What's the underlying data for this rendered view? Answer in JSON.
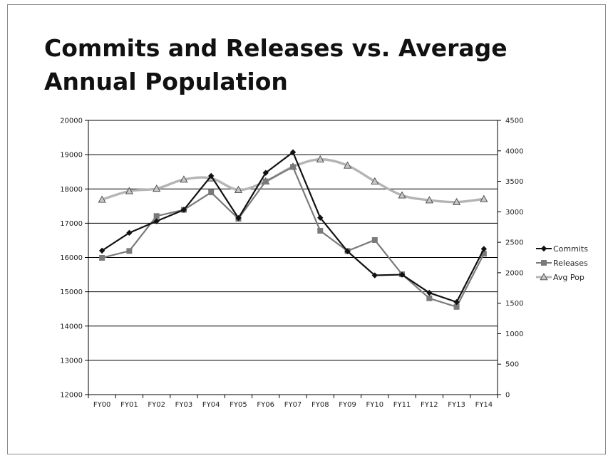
{
  "chart_data": {
    "type": "line",
    "title": "Commits and Releases vs. Average Annual Population",
    "categories": [
      "FY00",
      "FY01",
      "FY02",
      "FY03",
      "FY04",
      "FY05",
      "FY06",
      "FY07",
      "FY08",
      "FY09",
      "FY10",
      "FY11",
      "FY12",
      "FY13",
      "FY14"
    ],
    "y_left": {
      "min": 12000,
      "max": 20000,
      "step": 1000,
      "ticks": [
        "12000",
        "13000",
        "14000",
        "15000",
        "16000",
        "17000",
        "18000",
        "19000",
        "20000"
      ]
    },
    "y_right": {
      "min": 0,
      "max": 4500,
      "step": 500,
      "ticks": [
        "0",
        "500",
        "1000",
        "1500",
        "2000",
        "2500",
        "3000",
        "3500",
        "4000",
        "4500"
      ]
    },
    "grid": true,
    "legend": "right",
    "series": [
      {
        "name": "Commits",
        "axis": "left",
        "color": "#111111",
        "marker": "diamond",
        "values": [
          16200,
          16720,
          17060,
          17390,
          18380,
          17150,
          18470,
          19070,
          17160,
          16180,
          15480,
          15500,
          14970,
          14700,
          16250
        ]
      },
      {
        "name": "Releases",
        "axis": "left",
        "color": "#7a7a7a",
        "marker": "square",
        "values": [
          15990,
          16190,
          17210,
          17390,
          17900,
          17130,
          18220,
          18640,
          16780,
          16190,
          16510,
          15510,
          14810,
          14560,
          16110
        ]
      },
      {
        "name": "Avg Pop",
        "axis": "right",
        "color": "#b4b4b4",
        "marker": "triangle",
        "values": [
          3200,
          3340,
          3380,
          3530,
          3550,
          3360,
          3500,
          3740,
          3860,
          3760,
          3500,
          3270,
          3190,
          3160,
          3210
        ]
      }
    ]
  }
}
